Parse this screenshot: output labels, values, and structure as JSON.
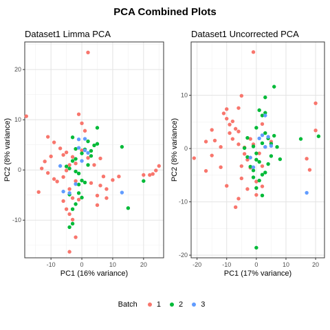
{
  "main_title": "PCA Combined Plots",
  "legend": {
    "title": "Batch",
    "items": [
      {
        "label": "1",
        "color": "#F8766D"
      },
      {
        "label": "2",
        "color": "#00BA38"
      },
      {
        "label": "3",
        "color": "#619CFF"
      }
    ]
  },
  "chart_data": [
    {
      "type": "scatter",
      "title": "Dataset1 Limma PCA",
      "xlabel": "PC1 (16% variance)",
      "ylabel": "PC2 (8% variance)",
      "xlim": [
        -18.5,
        26.5
      ],
      "ylim": [
        -17.5,
        25.5
      ],
      "xticks": [
        -10,
        0,
        10,
        20
      ],
      "yticks": [
        -10,
        0,
        10,
        20
      ],
      "grid": true,
      "series": [
        {
          "name": "1",
          "color": "#F8766D",
          "points": [
            [
              -18,
              10.7
            ],
            [
              -11,
              6.6
            ],
            [
              -9,
              5.5
            ],
            [
              -7,
              4.3
            ],
            [
              -6,
              3.0
            ],
            [
              -5,
              3.5
            ],
            [
              -3,
              2.6
            ],
            [
              -2,
              1.3
            ],
            [
              -1,
              11.1
            ],
            [
              2,
              23.4
            ],
            [
              0,
              9.3
            ],
            [
              1,
              7.8
            ],
            [
              -4,
              1.0
            ],
            [
              -13,
              0.3
            ],
            [
              -12,
              1.7
            ],
            [
              -10,
              2.7
            ],
            [
              -11,
              -0.6
            ],
            [
              -14,
              -4.4
            ],
            [
              -8,
              -2.3
            ],
            [
              -6,
              -1.4
            ],
            [
              -5,
              -0.1
            ],
            [
              -4,
              -3.8
            ],
            [
              -2,
              -2.2
            ],
            [
              -3,
              -5.6
            ],
            [
              -1,
              -5.9
            ],
            [
              -6,
              -6.2
            ],
            [
              -5,
              -7.8
            ],
            [
              -4,
              -8.8
            ],
            [
              -3,
              -9.9
            ],
            [
              -2,
              -13.4
            ],
            [
              -4,
              -16.3
            ],
            [
              0,
              3.9
            ],
            [
              2,
              2.4
            ],
            [
              4,
              1.0
            ],
            [
              3,
              -2.6
            ],
            [
              6,
              -3.1
            ],
            [
              5,
              -5.1
            ],
            [
              5,
              -7.0
            ],
            [
              6,
              2.3
            ],
            [
              7,
              -1.3
            ],
            [
              8,
              -3.8
            ],
            [
              8,
              -5.6
            ],
            [
              10,
              -2.0
            ],
            [
              12,
              -1.3
            ],
            [
              20,
              -1.0
            ],
            [
              22,
              -1.0
            ],
            [
              23,
              -0.8
            ],
            [
              25,
              0.8
            ],
            [
              24,
              -0.1
            ],
            [
              -9,
              -1.8
            ]
          ]
        },
        {
          "name": "2",
          "color": "#00BA38",
          "points": [
            [
              -3,
              6.5
            ],
            [
              -2,
              4.2
            ],
            [
              0,
              3.3
            ],
            [
              1,
              4.1
            ],
            [
              2,
              5.7
            ],
            [
              3,
              3.8
            ],
            [
              4,
              4.9
            ],
            [
              5,
              5.2
            ],
            [
              5,
              8.4
            ],
            [
              -3,
              1.8
            ],
            [
              -4,
              0.3
            ],
            [
              -2,
              -0.3
            ],
            [
              -1,
              -0.7
            ],
            [
              0,
              -2.1
            ],
            [
              1,
              -2.5
            ],
            [
              -1,
              -4.6
            ],
            [
              0,
              -5.5
            ],
            [
              -2,
              -6.8
            ],
            [
              -3,
              -7.8
            ],
            [
              -3,
              -10.7
            ],
            [
              -4,
              -11.4
            ],
            [
              -1,
              -2.9
            ],
            [
              13,
              4.6
            ],
            [
              15,
              -7.6
            ],
            [
              20,
              -2.2
            ],
            [
              -4,
              -4.9
            ],
            [
              2,
              1.0
            ],
            [
              -2,
              2.2
            ],
            [
              -5,
              0.7
            ],
            [
              3,
              2.8
            ]
          ]
        },
        {
          "name": "3",
          "color": "#619CFF",
          "points": [
            [
              -7,
              0.8
            ],
            [
              -6,
              -4.3
            ],
            [
              -2,
              -2.8
            ],
            [
              -1,
              6.1
            ],
            [
              0,
              1.8
            ],
            [
              1,
              3.9
            ],
            [
              2,
              3.4
            ],
            [
              -4,
              -4.6
            ],
            [
              13,
              -4.5
            ],
            [
              -1,
              4.4
            ],
            [
              1,
              6.2
            ]
          ]
        }
      ]
    },
    {
      "type": "scatter",
      "title": "Dataset1 Uncorrected PCA",
      "xlabel": "PC1 (17% variance)",
      "ylabel": "PC2 (8% variance)",
      "xlim": [
        -22,
        23
      ],
      "ylim": [
        -20.5,
        20
      ],
      "xticks": [
        -20,
        -10,
        0,
        10,
        20
      ],
      "yticks": [
        -20,
        -10,
        0,
        10
      ],
      "grid": true,
      "series": [
        {
          "name": "1",
          "color": "#F8766D",
          "points": [
            [
              -21,
              -1.8
            ],
            [
              -17,
              1.3
            ],
            [
              -17,
              -4.2
            ],
            [
              -15,
              3.5
            ],
            [
              -14,
              1.5
            ],
            [
              -12,
              0.3
            ],
            [
              -11,
              6.6
            ],
            [
              -10,
              7.4
            ],
            [
              -10,
              5.6
            ],
            [
              -9,
              4.5
            ],
            [
              -8,
              5.1
            ],
            [
              -7,
              3.7
            ],
            [
              -6,
              3.2
            ],
            [
              -6,
              7.6
            ],
            [
              -5,
              9.9
            ],
            [
              -10,
              -7.0
            ],
            [
              -7,
              -11.0
            ],
            [
              -6,
              -9.4
            ],
            [
              -5,
              -3.3
            ],
            [
              -4,
              -1.0
            ],
            [
              -3,
              -2.1
            ],
            [
              -2,
              -3.6
            ],
            [
              -5,
              -5.6
            ],
            [
              -1,
              18.1
            ],
            [
              0,
              -8.7
            ],
            [
              -2,
              1.8
            ],
            [
              -1,
              0.8
            ],
            [
              -4,
              0.2
            ],
            [
              -8,
              1.8
            ],
            [
              -9,
              2.9
            ],
            [
              -12,
              -3.5
            ],
            [
              -15,
              -1.3
            ],
            [
              0,
              -6.2
            ],
            [
              1,
              -0.9
            ],
            [
              2,
              -7.1
            ],
            [
              3,
              0.3
            ],
            [
              2,
              4.6
            ],
            [
              5,
              1.3
            ],
            [
              20,
              8.5
            ],
            [
              20,
              3.4
            ],
            [
              17,
              -1.9
            ],
            [
              18,
              -4.0
            ],
            [
              -3,
              -7.6
            ],
            [
              2,
              -3.3
            ],
            [
              -6,
              0.8
            ]
          ]
        },
        {
          "name": "2",
          "color": "#00BA38",
          "points": [
            [
              6,
              11.6
            ],
            [
              3,
              9.6
            ],
            [
              1,
              7.2
            ],
            [
              2,
              6.2
            ],
            [
              0,
              3.9
            ],
            [
              3,
              2.9
            ],
            [
              4,
              1.9
            ],
            [
              5,
              0.9
            ],
            [
              6,
              2.4
            ],
            [
              7,
              0.3
            ],
            [
              8,
              -2.0
            ],
            [
              5,
              -1.4
            ],
            [
              4,
              -2.9
            ],
            [
              3,
              -4.5
            ],
            [
              2,
              -4.9
            ],
            [
              1,
              -6.0
            ],
            [
              0,
              -7.4
            ],
            [
              -1,
              -5.4
            ],
            [
              -2,
              -3.4
            ],
            [
              -3,
              -1.6
            ],
            [
              -4,
              0.1
            ],
            [
              0,
              -0.9
            ],
            [
              1,
              -2.5
            ],
            [
              2,
              1.0
            ],
            [
              -1,
              0.4
            ],
            [
              2,
              -8.8
            ],
            [
              0,
              -18.6
            ],
            [
              15,
              1.8
            ],
            [
              21,
              2.3
            ],
            [
              0,
              -2.1
            ],
            [
              -3,
              2.0
            ],
            [
              -1,
              -4.1
            ],
            [
              3,
              6.7
            ]
          ]
        },
        {
          "name": "3",
          "color": "#619CFF",
          "points": [
            [
              -1,
              -3.5
            ],
            [
              2,
              2.5
            ],
            [
              3,
              6.2
            ],
            [
              5,
              0.5
            ],
            [
              1,
              1.9
            ],
            [
              3,
              0.3
            ],
            [
              17,
              -8.3
            ],
            [
              -2,
              -1.7
            ],
            [
              4,
              2.2
            ]
          ]
        }
      ]
    }
  ]
}
